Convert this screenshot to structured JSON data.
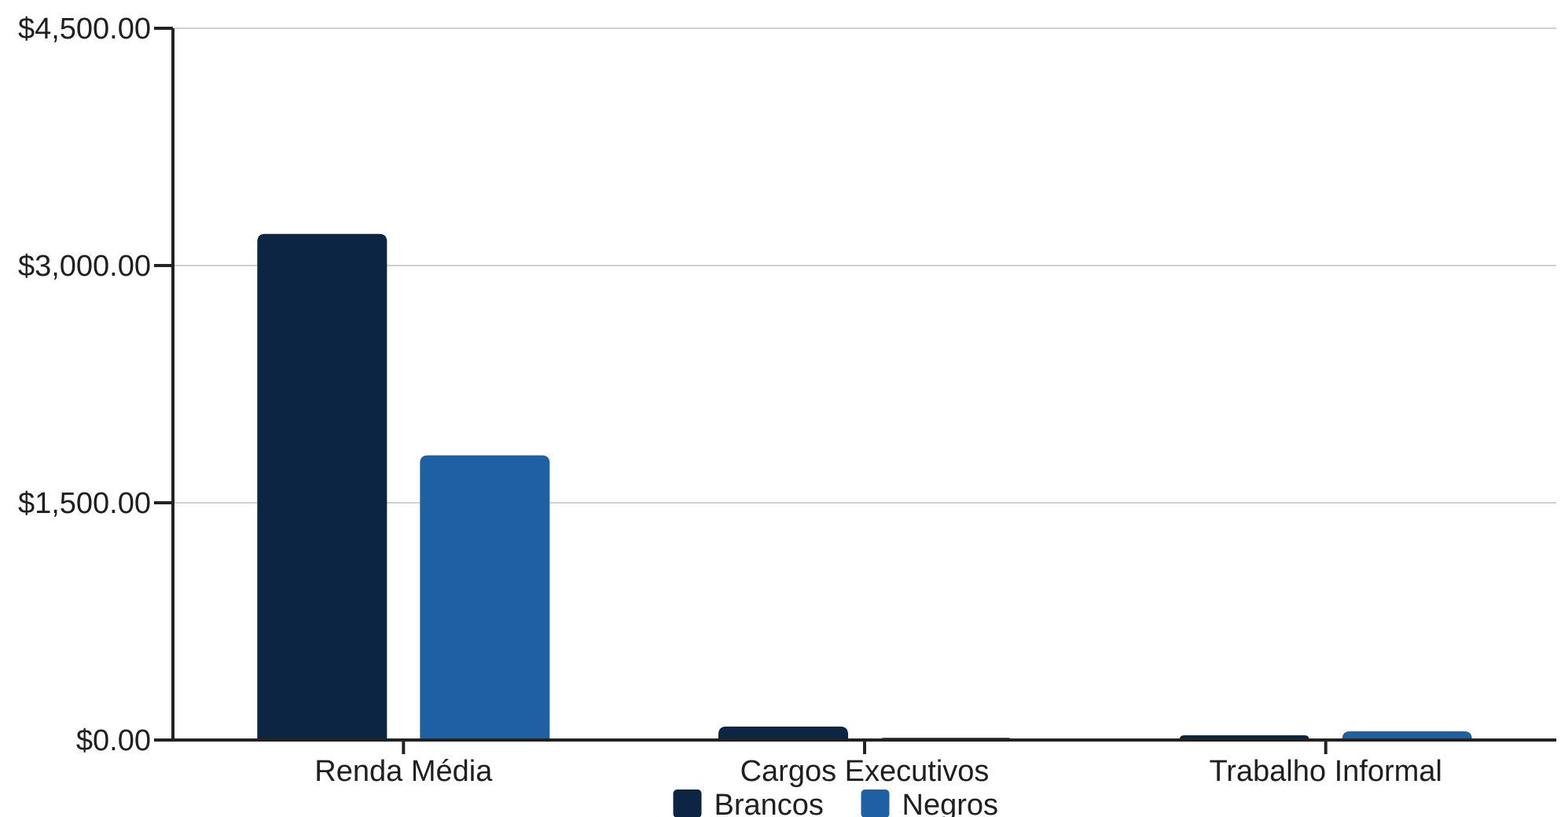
{
  "chart_data": {
    "type": "bar",
    "title": "",
    "xlabel": "",
    "ylabel": "",
    "categories": [
      "Renda Média",
      "Cargos Executivos",
      "Trabalho Informal"
    ],
    "series": [
      {
        "name": "Brancos",
        "color": "#0c2542",
        "values": [
          3200,
          85,
          30
        ]
      },
      {
        "name": "Negros",
        "color": "#1f5fa3",
        "values": [
          1800,
          15,
          55
        ]
      }
    ],
    "ylim": [
      0,
      4500
    ],
    "y_ticks": [
      0,
      1500,
      3000,
      4500
    ],
    "y_tick_labels": [
      "$0.00",
      "$1,500.00",
      "$3,000.00",
      "$4,500.00"
    ],
    "grid": true,
    "legend_position": "bottom-center",
    "colors": {
      "axis": "#222222",
      "grid": "#d0d0d0"
    }
  }
}
